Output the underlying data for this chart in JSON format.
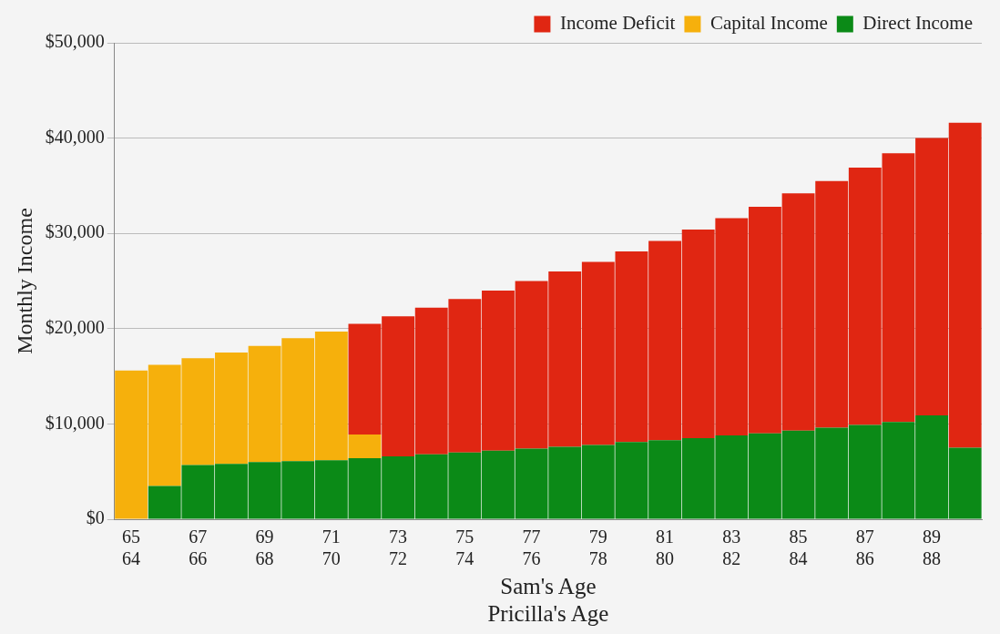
{
  "chart_data": {
    "type": "bar",
    "stacked": true,
    "xlabel": "Sam's Age\nPricilla's Age",
    "ylabel": "Monthly Income",
    "categories": [
      "65\n64",
      null,
      "67\n66",
      null,
      "69\n68",
      null,
      "71\n70",
      null,
      "73\n72",
      null,
      "75\n74",
      null,
      "77\n76",
      null,
      "79\n78",
      null,
      "81\n80",
      null,
      "83\n82",
      null,
      "85\n84",
      null,
      "87\n86",
      null,
      "89\n88",
      null
    ],
    "series": [
      {
        "name": "Direct Income",
        "color": "#0b8a17",
        "values": [
          0,
          3500,
          5700,
          5800,
          6000,
          6100,
          6200,
          6400,
          6600,
          6800,
          7000,
          7200,
          7400,
          7600,
          7800,
          8100,
          8300,
          8500,
          8800,
          9000,
          9300,
          9600,
          9900,
          10200,
          10900,
          7500
        ]
      },
      {
        "name": "Capital Income",
        "color": "#f6b00c",
        "values": [
          15600,
          12700,
          11200,
          11700,
          12200,
          12900,
          13500,
          2500,
          0,
          0,
          0,
          0,
          0,
          0,
          0,
          0,
          0,
          0,
          0,
          0,
          0,
          0,
          0,
          0,
          0,
          0
        ]
      },
      {
        "name": "Income Deficit",
        "color": "#e02612",
        "values": [
          0,
          0,
          0,
          0,
          0,
          0,
          0,
          11600,
          14700,
          15400,
          16100,
          16800,
          17600,
          18400,
          19200,
          20000,
          20900,
          21900,
          22800,
          23800,
          24900,
          25900,
          27000,
          28200,
          29100,
          34100
        ]
      }
    ],
    "ylim": [
      0,
      50000
    ],
    "yticks": [
      {
        "value": 0,
        "label": "$0"
      },
      {
        "value": 10000,
        "label": "$10,000"
      },
      {
        "value": 20000,
        "label": "$20,000"
      },
      {
        "value": 30000,
        "label": "$30,000"
      },
      {
        "value": 40000,
        "label": "$40,000"
      },
      {
        "value": 50000,
        "label": "$50,000"
      }
    ],
    "grid": "y",
    "legend": "top"
  }
}
